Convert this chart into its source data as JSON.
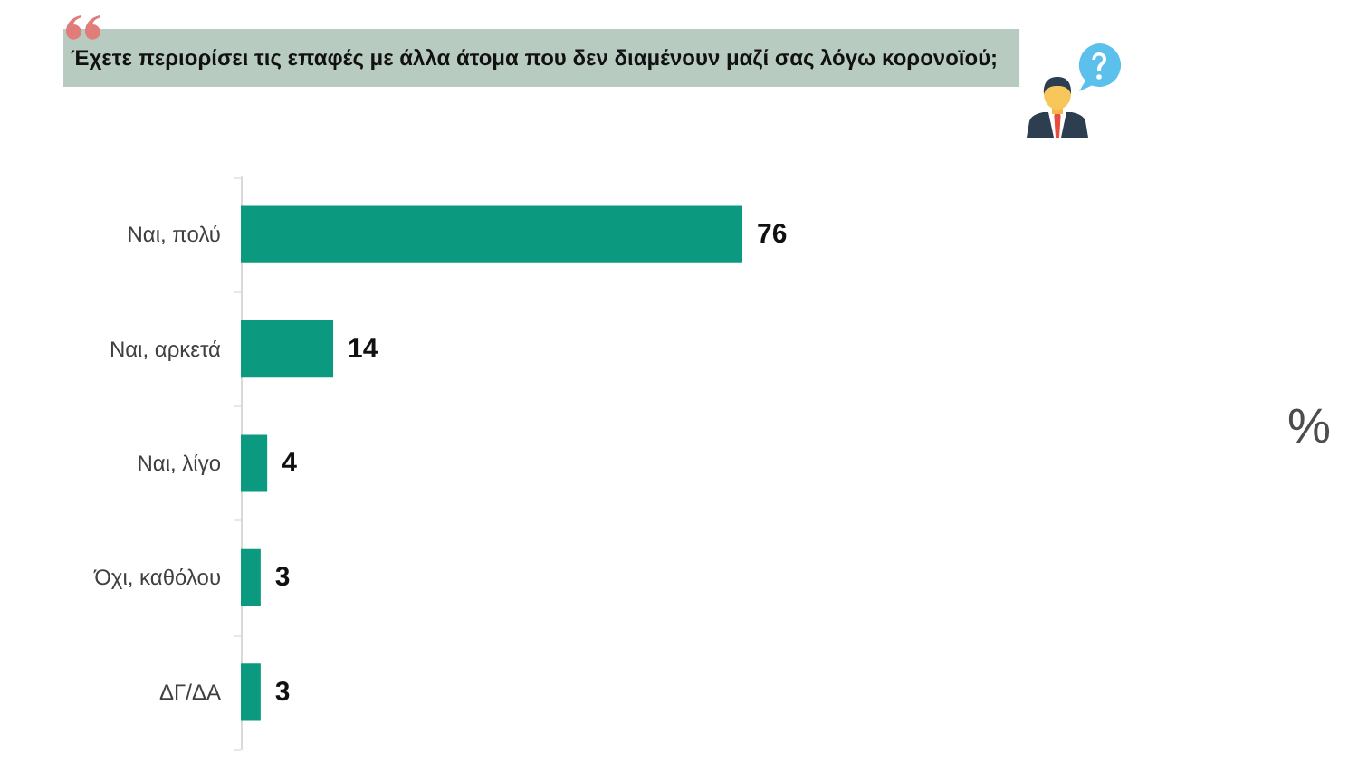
{
  "chart_data": {
    "type": "bar",
    "orientation": "horizontal",
    "title": "Έχετε περιορίσει τις επαφές με άλλα άτομα που δεν διαμένουν μαζί σας λόγω κορονοϊού;",
    "categories": [
      "Ναι, πολύ",
      "Ναι, αρκετά",
      "Ναι, λίγο",
      "Όχι, καθόλου",
      "ΔΓ/ΔΑ"
    ],
    "values": [
      76,
      14,
      4,
      3,
      3
    ],
    "color": "#0b9a7f",
    "data_labels": true,
    "annotations": [
      "%"
    ]
  }
}
